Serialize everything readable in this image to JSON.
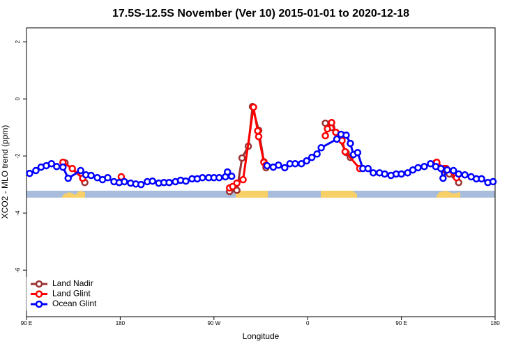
{
  "chart_data": {
    "type": "line",
    "title": "17.5S-12.5S November (Ver 10)   2015-01-01 to 2020-12-18",
    "xlabel": "Longitude",
    "ylabel": "XCO2 - MLO trend (ppm)",
    "xlim": [
      90,
      540
    ],
    "ylim": [
      -7.63,
      2.49
    ],
    "xticks": [
      {
        "value": 90,
        "label": "90 E"
      },
      {
        "value": 180,
        "label": "180"
      },
      {
        "value": 270,
        "label": "90 W"
      },
      {
        "value": 360,
        "label": "0"
      },
      {
        "value": 450,
        "label": "90 E"
      },
      {
        "value": 540,
        "label": "180"
      }
    ],
    "yticks": [
      2,
      0,
      -2,
      -4,
      -6
    ],
    "legend": "bottom-left",
    "series": [
      {
        "name": "Land Nadir",
        "color": "#993333",
        "x": [
          127,
          144,
          146,
          null,
          285,
          292,
          297,
          303,
          307,
          313,
          318,
          320,
          null,
          377,
          383,
          387,
          397,
          401,
          null,
          483,
          492,
          496,
          505
        ],
        "values": [
          -2.24,
          -2.78,
          -2.93,
          null,
          -3.24,
          -3.2,
          -2.07,
          -1.66,
          -0.27,
          -1.1,
          -2.2,
          -2.41,
          null,
          -0.85,
          -1.0,
          -1.17,
          -1.88,
          -2.05,
          null,
          -2.24,
          -2.49,
          -2.63,
          -2.93
        ]
      },
      {
        "name": "Land Glint",
        "color": "#ff0000",
        "x": [
          125,
          134,
          144,
          null,
          181,
          null,
          285,
          288,
          292,
          298,
          308,
          312,
          313,
          318,
          320,
          null,
          377,
          379,
          383,
          387,
          393,
          396,
          410,
          null,
          484,
          491,
          493,
          503
        ],
        "values": [
          -2.22,
          -2.44,
          -2.78,
          null,
          -2.73,
          null,
          -3.12,
          -3.07,
          -2.95,
          -2.83,
          -0.29,
          -1.12,
          -1.32,
          -2.22,
          -2.32,
          null,
          -1.29,
          -1.05,
          -0.83,
          -1.17,
          -1.46,
          -1.85,
          -2.44,
          null,
          -2.22,
          -2.44,
          -2.44,
          -2.76
        ]
      },
      {
        "name": "Ocean Glint",
        "color": "#0000ff",
        "x": [
          93,
          99,
          104,
          109,
          114,
          119,
          125,
          130,
          142,
          147,
          152,
          158,
          163,
          168,
          174,
          179,
          184,
          190,
          195,
          200,
          206,
          211,
          217,
          222,
          227,
          233,
          238,
          243,
          249,
          254,
          259,
          265,
          270,
          275,
          281,
          283,
          287,
          null,
          321,
          327,
          332,
          338,
          343,
          348,
          354,
          359,
          364,
          369,
          373,
          388,
          392,
          397,
          401,
          404,
          408,
          413,
          418,
          423,
          429,
          434,
          440,
          445,
          450,
          456,
          461,
          466,
          472,
          478,
          483,
          488,
          490,
          494,
          500,
          505,
          511,
          517,
          522,
          527,
          533,
          538
        ],
        "values": [
          -2.61,
          -2.51,
          -2.39,
          -2.34,
          -2.27,
          -2.37,
          -2.39,
          -2.78,
          -2.51,
          -2.66,
          -2.68,
          -2.76,
          -2.83,
          -2.76,
          -2.9,
          -2.93,
          -2.9,
          -2.95,
          -2.98,
          -3.0,
          -2.9,
          -2.88,
          -2.95,
          -2.93,
          -2.93,
          -2.9,
          -2.85,
          -2.88,
          -2.8,
          -2.8,
          -2.76,
          -2.76,
          -2.76,
          -2.76,
          -2.73,
          -2.56,
          -2.71,
          null,
          -2.34,
          -2.39,
          -2.32,
          -2.41,
          -2.27,
          -2.27,
          -2.27,
          -2.17,
          -2.05,
          -1.93,
          -1.71,
          -1.41,
          -1.24,
          -1.27,
          -1.56,
          -1.95,
          -1.88,
          -2.44,
          -2.44,
          -2.59,
          -2.59,
          -2.63,
          -2.68,
          -2.63,
          -2.63,
          -2.59,
          -2.49,
          -2.41,
          -2.37,
          -2.27,
          -2.37,
          -2.44,
          -2.78,
          -2.49,
          -2.51,
          -2.63,
          -2.66,
          -2.73,
          -2.8,
          -2.8,
          -2.93,
          -2.9
        ]
      }
    ]
  }
}
